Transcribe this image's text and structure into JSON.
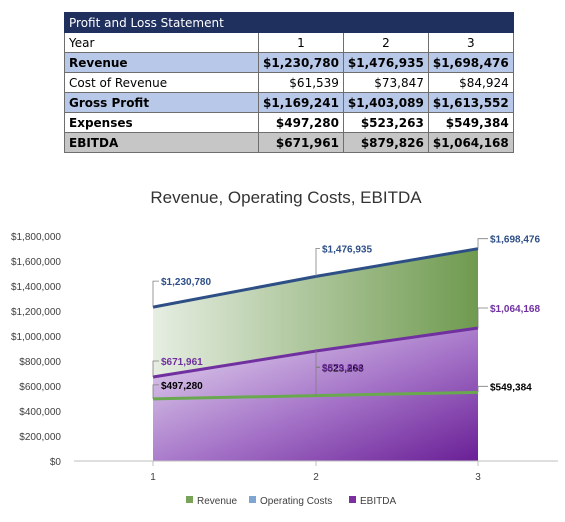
{
  "table": {
    "title": "Profit and Loss Statement",
    "header": [
      "Year",
      "1",
      "2",
      "3"
    ],
    "rows": [
      {
        "label": "Revenue",
        "values": [
          "$1,230,780",
          "$1,476,935",
          "$1,698,476"
        ]
      },
      {
        "label": "Cost of Revenue",
        "values": [
          "$61,539",
          "$73,847",
          "$84,924"
        ]
      },
      {
        "label": "Gross Profit",
        "values": [
          "$1,169,241",
          "$1,403,089",
          "$1,613,552"
        ]
      },
      {
        "label": "Expenses",
        "values": [
          "$497,280",
          "$523,263",
          "$549,384"
        ]
      },
      {
        "label": "EBITDA",
        "values": [
          "$671,961",
          "$879,826",
          "$1,064,168"
        ]
      }
    ]
  },
  "colors": {
    "table_title_bg": "#1f2f5e",
    "highlight_row_bg": "#b8c8e8",
    "total_row_bg": "#c6c6c6",
    "revenue_line": "#2e4f86",
    "operating_costs_line": "#6aa84f",
    "ebitda_line": "#7030a0",
    "revenue_area": "#7aa35a",
    "ebitda_area": "#7b2fa0"
  },
  "chart_data": {
    "type": "area",
    "title": "Revenue, Operating Costs, EBITDA",
    "x": [
      1,
      2,
      3
    ],
    "x_tick_labels": [
      "1",
      "2",
      "3"
    ],
    "ylim": [
      0,
      1800000
    ],
    "y_ticks": [
      0,
      200000,
      400000,
      600000,
      800000,
      1000000,
      1200000,
      1400000,
      1600000,
      1800000
    ],
    "y_tick_labels": [
      "$0",
      "$200,000",
      "$400,000",
      "$600,000",
      "$800,000",
      "$1,000,000",
      "$1,200,000",
      "$1,400,000",
      "$1,600,000",
      "$1,800,000"
    ],
    "grid": false,
    "legend_position": "bottom",
    "series": [
      {
        "name": "Revenue",
        "values": [
          1230780,
          1476935,
          1698476
        ],
        "labels": [
          "$1,230,780",
          "$1,476,935",
          "$1,698,476"
        ]
      },
      {
        "name": "Operating Costs",
        "values": [
          497280,
          523263,
          549384
        ],
        "labels": [
          "$497,280",
          "$523,263",
          "$549,384"
        ]
      },
      {
        "name": "EBITDA",
        "values": [
          671961,
          879826,
          1064168
        ],
        "labels": [
          "$671,961",
          "$879,826",
          "$1,064,168"
        ]
      }
    ]
  }
}
